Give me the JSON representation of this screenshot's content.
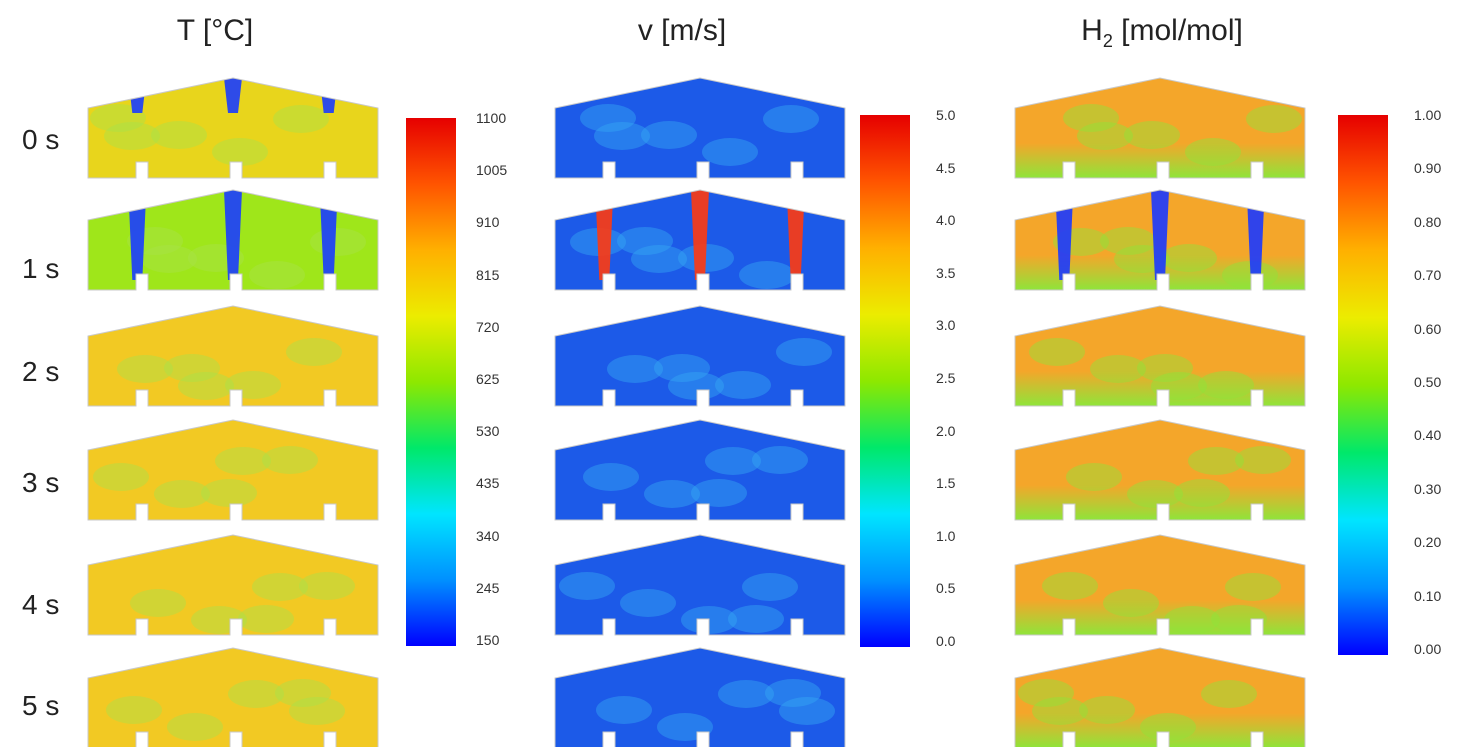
{
  "columns": [
    {
      "title_main": "T [°C]",
      "title_sub": "",
      "scale_values": [
        "1100",
        "1005",
        "910",
        "815",
        "720",
        "625",
        "530",
        "435",
        "340",
        "245",
        "150"
      ],
      "base_color": "#f6c21c"
    },
    {
      "title_main": "v [m/s]",
      "title_sub": "",
      "scale_values": [
        "5.0",
        "4.5",
        "4.0",
        "3.5",
        "3.0",
        "2.5",
        "2.0",
        "1.5",
        "1.0",
        "0.5",
        "0.0"
      ],
      "base_color": "#1f5cf0"
    },
    {
      "title_main": "H",
      "title_sub": "2",
      "title_rest": " [mol/mol]",
      "scale_values": [
        "1.00",
        "0.90",
        "0.80",
        "0.70",
        "0.60",
        "0.50",
        "0.40",
        "0.30",
        "0.20",
        "0.10",
        "0.00"
      ],
      "base_color": "#f3a526"
    }
  ],
  "time_labels": [
    "0 s",
    "1 s",
    "2 s",
    "3 s",
    "4 s",
    "5 s"
  ],
  "colormap": [
    "#0000ff",
    "#0090ff",
    "#00e5ff",
    "#00e86a",
    "#8ee800",
    "#ecec00",
    "#ffb000",
    "#ff5400",
    "#e60000"
  ]
}
